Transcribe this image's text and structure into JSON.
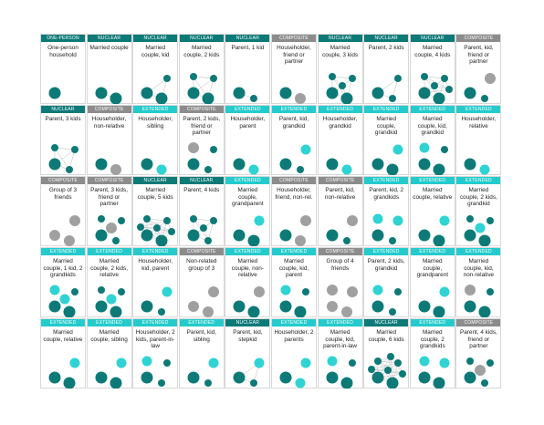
{
  "cells": [
    {
      "category": "ONE-PERSON",
      "label": "One-person household"
    },
    {
      "category": "NUCLEAR",
      "label": "Married couple"
    },
    {
      "category": "NUCLEAR",
      "label": "Married couple, kid"
    },
    {
      "category": "NUCLEAR",
      "label": "Married couple, 2 kids"
    },
    {
      "category": "NUCLEAR",
      "label": "Parent, 1 kid"
    },
    {
      "category": "COMPOSITE",
      "label": "Householder, friend or partner"
    },
    {
      "category": "NUCLEAR",
      "label": "Married couple, 3 kids"
    },
    {
      "category": "NUCLEAR",
      "label": "Parent, 2 kids"
    },
    {
      "category": "NUCLEAR",
      "label": "Married couple, 4 kids"
    },
    {
      "category": "COMPOSITE",
      "label": "Parent, kid, friend or partner"
    },
    {
      "category": "NUCLEAR",
      "label": "Parent, 3 kids"
    },
    {
      "category": "COMPOSITE",
      "label": "Householder, non-relative"
    },
    {
      "category": "EXTENDED",
      "label": "Householder, sibling"
    },
    {
      "category": "COMPOSITE",
      "label": "Parent, 2 kids, friend or partner"
    },
    {
      "category": "EXTENDED",
      "label": "Householder, parent"
    },
    {
      "category": "EXTENDED",
      "label": "Parent, kid, grandkid"
    },
    {
      "category": "EXTENDED",
      "label": "Householder, grandkid"
    },
    {
      "category": "EXTENDED",
      "label": "Married couple, grandkid"
    },
    {
      "category": "EXTENDED",
      "label": "Married couple, kid, grandkid"
    },
    {
      "category": "EXTENDED",
      "label": "Householder, relative"
    },
    {
      "category": "COMPOSITE",
      "label": "Group of 3 friends"
    },
    {
      "category": "COMPOSITE",
      "label": "Parent, 3 kids, friend or partner"
    },
    {
      "category": "NUCLEAR",
      "label": "Married couple, 5 kids"
    },
    {
      "category": "NUCLEAR",
      "label": "Parent, 4 kids"
    },
    {
      "category": "EXTENDED",
      "label": "Married couple, grandparent"
    },
    {
      "category": "COMPOSITE",
      "label": "Householder, friend, non-rel."
    },
    {
      "category": "COMPOSITE",
      "label": "Parent, kid, non-relative"
    },
    {
      "category": "EXTENDED",
      "label": "Parent, kid, 2 grandkids"
    },
    {
      "category": "EXTENDED",
      "label": "Married couple, relative"
    },
    {
      "category": "EXTENDED",
      "label": "Married couple, 2 kids, grandkid"
    },
    {
      "category": "EXTENDED",
      "label": "Married couple, 1 kid, 2 grandkids"
    },
    {
      "category": "EXTENDED",
      "label": "Married couple, 2 kids, relative"
    },
    {
      "category": "EXTENDED",
      "label": "Householder, kid, parent"
    },
    {
      "category": "COMPOSITE",
      "label": "Non-related group of 3"
    },
    {
      "category": "EXTENDED",
      "label": "Married couple, non-relative"
    },
    {
      "category": "EXTENDED",
      "label": "Married couple, kid, parent"
    },
    {
      "category": "COMPOSITE",
      "label": "Group of 4 friends"
    },
    {
      "category": "EXTENDED",
      "label": "Parent, 2 kids, grandkid"
    },
    {
      "category": "EXTENDED",
      "label": "Married couple, grandparent"
    },
    {
      "category": "EXTENDED",
      "label": "Married couple, kid, non-relative"
    },
    {
      "category": "EXTENDED",
      "label": "Married couple, relative"
    },
    {
      "category": "EXTENDED",
      "label": "Married couple, sibling"
    },
    {
      "category": "EXTENDED",
      "label": "Householder, 2 kids, parent-in-law"
    },
    {
      "category": "EXTENDED",
      "label": "Parent, kid, sibling"
    },
    {
      "category": "NUCLEAR",
      "label": "Parent, kid, stepkid"
    },
    {
      "category": "EXTENDED",
      "label": "Householder, 2 parents"
    },
    {
      "category": "EXTENDED",
      "label": "Married couple, kid, parent-in-law"
    },
    {
      "category": "NUCLEAR",
      "label": "Married couple, 6 kids"
    },
    {
      "category": "EXTENDED",
      "label": "Married couple, 2 grandkids"
    },
    {
      "category": "COMPOSITE",
      "label": "Parent, 4 kids, friend or partner"
    }
  ]
}
